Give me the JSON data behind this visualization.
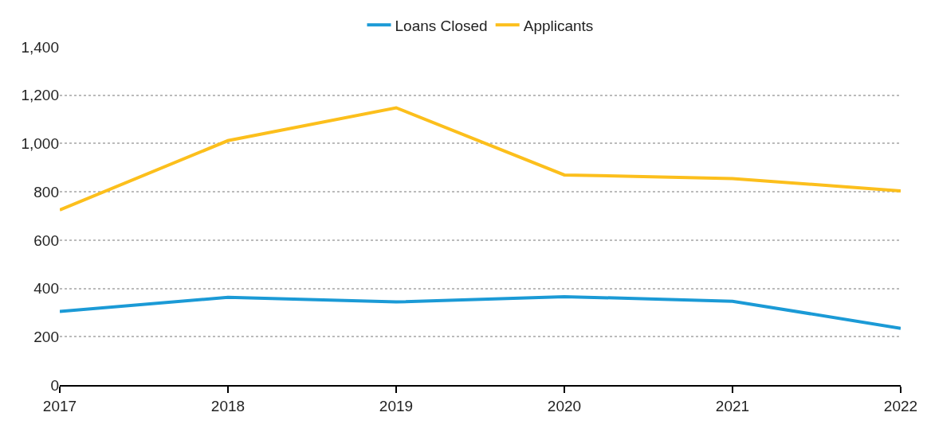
{
  "chart_data": {
    "type": "line",
    "x": [
      2017,
      2018,
      2019,
      2020,
      2021,
      2022
    ],
    "series": [
      {
        "name": "Loans Closed",
        "color": "#1b9ad6",
        "values": [
          305,
          363,
          344,
          366,
          347,
          235
        ]
      },
      {
        "name": "Applicants",
        "color": "#fcbf1c",
        "values": [
          725,
          1012,
          1148,
          870,
          855,
          804
        ]
      }
    ],
    "xlim": [
      2017,
      2022
    ],
    "xticks": [
      2017,
      2018,
      2019,
      2020,
      2021,
      2022
    ],
    "ylim": [
      0,
      1400
    ],
    "yticks": [
      0,
      {
        "value": 200,
        "label": "200"
      },
      {
        "value": 400,
        "label": "400"
      },
      {
        "value": 600,
        "label": "600"
      },
      {
        "value": 800,
        "label": "800"
      },
      {
        "value": 1000,
        "label": "1,000"
      },
      {
        "value": 1200,
        "label": "1,200"
      },
      {
        "value": 1400,
        "label": "1,400"
      }
    ],
    "grid": "y",
    "legend": "top",
    "marker": "none",
    "line_style": "solid"
  }
}
